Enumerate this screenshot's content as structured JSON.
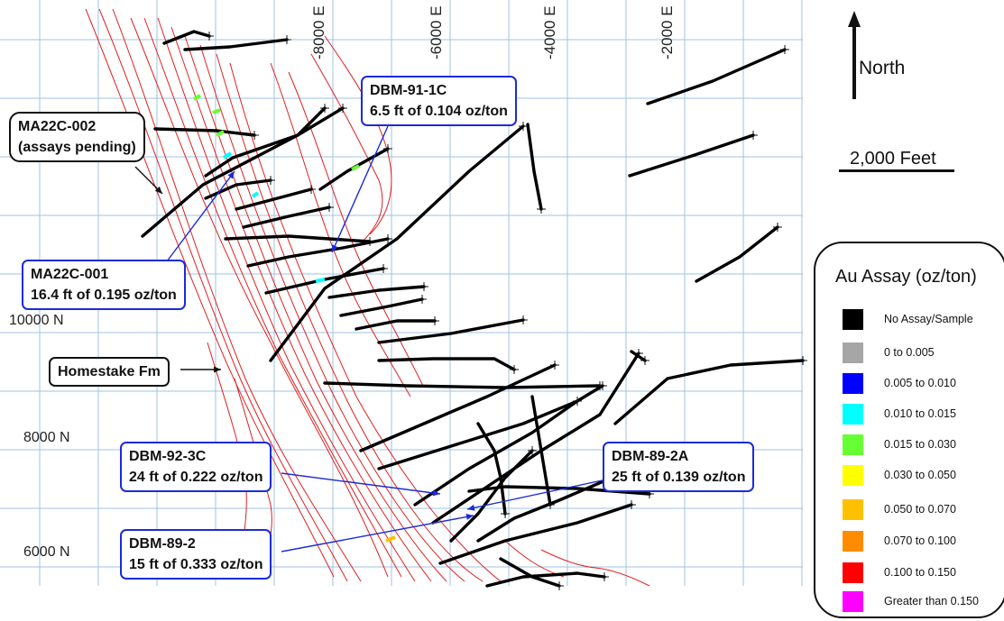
{
  "axes": {
    "easting_labels": [
      "-8000 E",
      "-6000 E",
      "-4000 E",
      "-2000 E"
    ],
    "northing_labels": [
      "10000 N",
      "8000 N",
      "6000 N"
    ]
  },
  "north_arrow": {
    "label": "North",
    "icon": "arrow-up-icon"
  },
  "scale_bar": {
    "label": "2,000 Feet"
  },
  "callouts": [
    {
      "id": "ma22c-002",
      "lines": [
        "MA22C-002",
        "(assays pending)"
      ],
      "border": "#111111"
    },
    {
      "id": "dbm-91-1c",
      "lines": [
        "DBM-91-1C",
        "6.5 ft of 0.104 oz/ton"
      ],
      "border": "#1c2bd6"
    },
    {
      "id": "ma22c-001",
      "lines": [
        "MA22C-001",
        "16.4 ft of 0.195 oz/ton"
      ],
      "border": "#1c2bd6"
    },
    {
      "id": "homestake",
      "lines": [
        "Homestake Fm"
      ],
      "border": "#111111"
    },
    {
      "id": "dbm-92-3c",
      "lines": [
        "DBM-92-3C",
        "24 ft of 0.222 oz/ton"
      ],
      "border": "#1c2bd6"
    },
    {
      "id": "dbm-89-2a",
      "lines": [
        "DBM-89-2A",
        "25 ft of 0.139 oz/ton"
      ],
      "border": "#1c2bd6"
    },
    {
      "id": "dbm-89-2",
      "lines": [
        "DBM-89-2",
        "15 ft of 0.333 oz/ton"
      ],
      "border": "#1c2bd6"
    }
  ],
  "legend": {
    "title": "Au Assay (oz/ton)",
    "items": [
      {
        "label": "No Assay/Sample",
        "color": "#000000"
      },
      {
        "label": "0 to 0.005",
        "color": "#a6a6a6"
      },
      {
        "label": "0.005  to 0.010",
        "color": "#0000ff"
      },
      {
        "label": "0.010  to 0.015",
        "color": "#00ffff"
      },
      {
        "label": "0.015  to 0.030",
        "color": "#66ff33"
      },
      {
        "label": "0.030  to 0.050",
        "color": "#ffff00"
      },
      {
        "label": "0.050  to 0.070",
        "color": "#ffc000"
      },
      {
        "label": "0.070  to 0.100",
        "color": "#ff8c00"
      },
      {
        "label": "0.100  to 0.150",
        "color": "#ff0000"
      },
      {
        "label": "Greater than 0.150",
        "color": "#ff00ff"
      }
    ]
  },
  "colors": {
    "grid": "#9dc3e6",
    "drillhole": "#000000",
    "formation": "#e02020",
    "leader": "#1c2bd6"
  }
}
